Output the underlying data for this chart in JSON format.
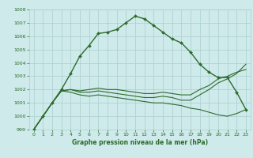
{
  "title": "Graphe pression niveau de la mer (hPa)",
  "background_color": "#ceeaea",
  "grid_color": "#aacece",
  "line_color": "#2d6b2d",
  "x_min": 0,
  "x_max": 23,
  "y_min": 999,
  "y_max": 1008,
  "x_ticks": [
    0,
    1,
    2,
    3,
    4,
    5,
    6,
    7,
    8,
    9,
    10,
    11,
    12,
    13,
    14,
    15,
    16,
    17,
    18,
    19,
    20,
    21,
    22,
    23
  ],
  "y_ticks": [
    999,
    1000,
    1001,
    1002,
    1003,
    1004,
    1005,
    1006,
    1007,
    1008
  ],
  "main_y": [
    999.0,
    1000.0,
    1001.0,
    1002.0,
    1003.2,
    1004.5,
    1005.3,
    1006.2,
    1006.3,
    1006.5,
    1007.0,
    1007.5,
    1007.3,
    1006.8,
    1006.3,
    1005.8,
    1005.5,
    1004.8,
    1003.9,
    1003.3,
    1002.9,
    1002.9,
    1001.8,
    1000.5
  ],
  "line_a": [
    999.0,
    1000.0,
    1001.0,
    1001.9,
    1001.8,
    1001.6,
    1001.5,
    1001.6,
    1001.5,
    1001.4,
    1001.3,
    1001.2,
    1001.1,
    1001.0,
    1001.0,
    1000.9,
    1000.8,
    1000.6,
    1000.5,
    1000.3,
    1000.1,
    1000.0,
    1000.2,
    1000.5
  ],
  "line_b": [
    999.0,
    1000.0,
    1001.0,
    1001.9,
    1002.0,
    1001.9,
    1002.0,
    1002.1,
    1002.0,
    1002.0,
    1001.9,
    1001.8,
    1001.7,
    1001.7,
    1001.8,
    1001.7,
    1001.6,
    1001.6,
    1002.0,
    1002.3,
    1002.8,
    1003.0,
    1003.3,
    1003.5
  ],
  "line_c": [
    999.0,
    1000.0,
    1001.0,
    1001.9,
    1002.0,
    1001.8,
    1001.8,
    1001.9,
    1001.8,
    1001.7,
    1001.6,
    1001.5,
    1001.4,
    1001.4,
    1001.5,
    1001.4,
    1001.2,
    1001.2,
    1001.6,
    1002.0,
    1002.5,
    1002.8,
    1003.2,
    1003.9
  ]
}
